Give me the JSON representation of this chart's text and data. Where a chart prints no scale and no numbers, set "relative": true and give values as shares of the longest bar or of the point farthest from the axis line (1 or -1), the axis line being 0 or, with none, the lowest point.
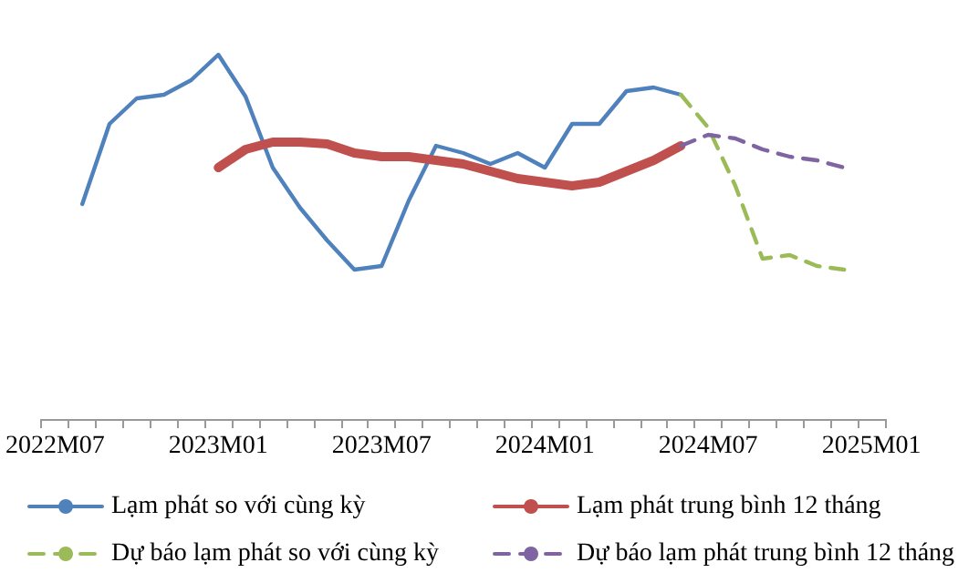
{
  "chart_data": {
    "type": "line",
    "relative": true,
    "legend": "bottom",
    "grid": false,
    "marker": "none",
    "categories": [
      "2022M07",
      null,
      null,
      null,
      null,
      null,
      "2023M01",
      null,
      null,
      null,
      null,
      null,
      "2023M07",
      null,
      null,
      null,
      null,
      null,
      "2024M01",
      null,
      null,
      null,
      null,
      null,
      "2024M07",
      null,
      null,
      null,
      null,
      null,
      "2025M01"
    ],
    "series": [
      {
        "name": "Lạm phát so với cùng kỳ",
        "color": "#4f81bd",
        "line_style": "solid",
        "values": [
          null,
          0.59,
          0.81,
          0.88,
          0.89,
          0.93,
          1.0,
          0.885,
          0.69,
          0.58,
          0.49,
          0.41,
          0.42,
          0.6,
          0.75,
          0.73,
          0.7,
          0.73,
          0.69,
          0.81,
          0.81,
          0.9,
          0.91,
          0.89,
          null,
          null,
          null,
          null,
          null,
          null,
          null
        ]
      },
      {
        "name": "Lạm phát trung bình 12 tháng",
        "color": "#c0504d",
        "line_style": "solid",
        "values": [
          null,
          null,
          null,
          null,
          null,
          null,
          0.69,
          0.74,
          0.76,
          0.76,
          0.755,
          0.73,
          0.72,
          0.72,
          0.71,
          0.7,
          0.68,
          0.66,
          0.65,
          0.64,
          0.65,
          0.68,
          0.71,
          0.75,
          null,
          null,
          null,
          null,
          null,
          null,
          null
        ]
      },
      {
        "name": "Dự báo lạm phát so với cùng kỳ",
        "color": "#9bbb59",
        "line_style": "dashed",
        "values": [
          null,
          null,
          null,
          null,
          null,
          null,
          null,
          null,
          null,
          null,
          null,
          null,
          null,
          null,
          null,
          null,
          null,
          null,
          null,
          null,
          null,
          null,
          null,
          0.89,
          0.8,
          0.64,
          0.44,
          0.45,
          0.42,
          0.41,
          null
        ]
      },
      {
        "name": "Dự báo lạm phát trung bình 12 tháng",
        "color": "#8064a2",
        "line_style": "dashed",
        "values": [
          null,
          null,
          null,
          null,
          null,
          null,
          null,
          null,
          null,
          null,
          null,
          null,
          null,
          null,
          null,
          null,
          null,
          null,
          null,
          null,
          null,
          null,
          null,
          0.75,
          0.78,
          0.77,
          0.74,
          0.72,
          0.71,
          0.69,
          null
        ]
      }
    ]
  }
}
